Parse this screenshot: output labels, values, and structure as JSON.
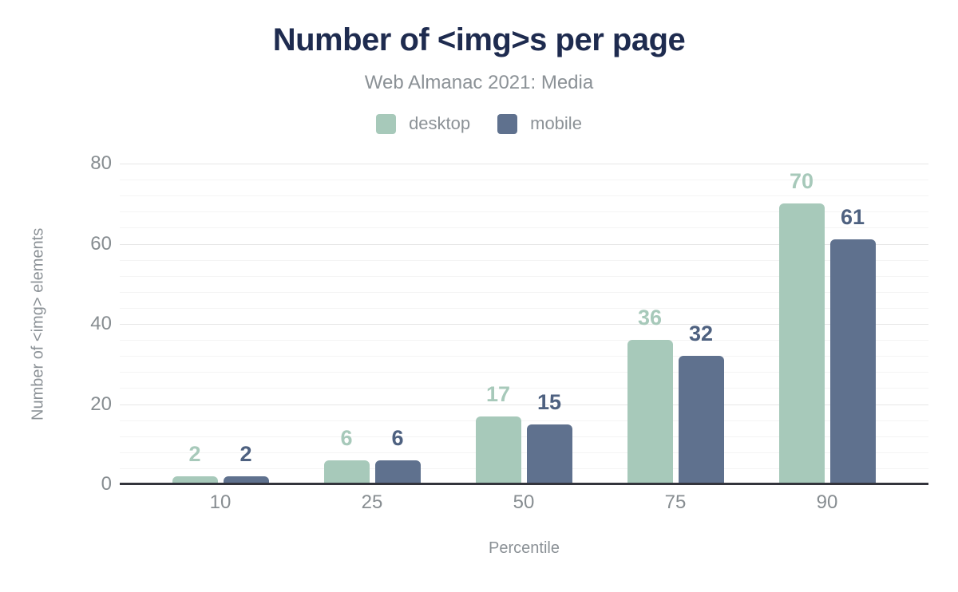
{
  "header": {
    "title": "Number of <img>s per page",
    "subtitle": "Web Almanac 2021: Media"
  },
  "chart_data": {
    "type": "bar",
    "title": "Number of <img>s per page",
    "subtitle": "Web Almanac 2021: Media",
    "categories": [
      "10",
      "25",
      "50",
      "75",
      "90"
    ],
    "series": [
      {
        "name": "desktop",
        "color": "#a7c9ba",
        "label_color": "#a7c9ba",
        "values": [
          2,
          6,
          17,
          36,
          70
        ]
      },
      {
        "name": "mobile",
        "color": "#5f718e",
        "label_color": "#4e6180",
        "values": [
          2,
          6,
          15,
          32,
          61
        ]
      }
    ],
    "xlabel": "Percentile",
    "ylabel": "Number of <img> elements",
    "ylim": [
      0,
      80
    ],
    "y_ticks": [
      0,
      20,
      40,
      60,
      80
    ],
    "y_minor_step": 4,
    "grid": "horizontal",
    "legend_position": "top",
    "bar_labels_shown": true
  },
  "colors": {
    "title": "#1e2b4f",
    "muted_text": "#8b9196",
    "tick_text": "#878d91",
    "axis_line": "#33343c",
    "major_gridline": "#e7e7e7",
    "minor_gridline": "#f4f4f4",
    "background": "#ffffff"
  }
}
